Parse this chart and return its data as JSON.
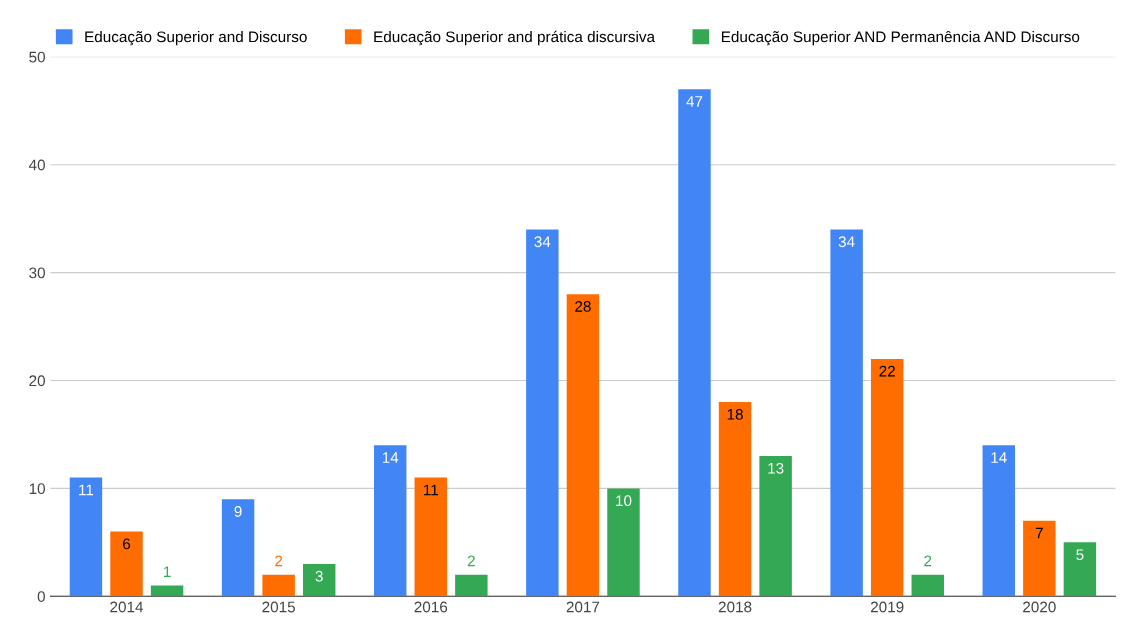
{
  "chart_data": {
    "type": "bar",
    "categories": [
      "2014",
      "2015",
      "2016",
      "2017",
      "2018",
      "2019",
      "2020"
    ],
    "series": [
      {
        "name": "Educação Superior and Discurso",
        "color": "#4285f4",
        "values": [
          11,
          9,
          14,
          34,
          47,
          34,
          14
        ]
      },
      {
        "name": "Educação Superior and prática discursiva",
        "color": "#ff6d01",
        "values": [
          6,
          2,
          11,
          28,
          18,
          22,
          7
        ]
      },
      {
        "name": "Educação Superior AND Permanência AND Discurso",
        "color": "#34a853",
        "values": [
          1,
          3,
          2,
          10,
          13,
          2,
          5
        ]
      }
    ],
    "ylim": [
      0,
      50
    ],
    "yticks": [
      0,
      10,
      20,
      30,
      40,
      50
    ],
    "grid": "y",
    "legend": "top left",
    "data_labels": true
  }
}
